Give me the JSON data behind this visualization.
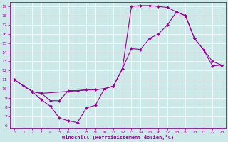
{
  "bg_color": "#cce8e8",
  "line_color": "#990099",
  "xlim": [
    -0.5,
    23.5
  ],
  "ylim": [
    5.7,
    19.5
  ],
  "xticks": [
    0,
    1,
    2,
    3,
    4,
    5,
    6,
    7,
    8,
    9,
    10,
    11,
    12,
    13,
    14,
    15,
    16,
    17,
    18,
    19,
    20,
    21,
    22,
    23
  ],
  "yticks": [
    6,
    7,
    8,
    9,
    10,
    11,
    12,
    13,
    14,
    15,
    16,
    17,
    18,
    19
  ],
  "xlabel": "Windchill (Refroidissement éolien,°C)",
  "line1_x": [
    0,
    1,
    2,
    3,
    4,
    5,
    6,
    7,
    8,
    9,
    10,
    11,
    12,
    13,
    14,
    15,
    16,
    17,
    18,
    19,
    20,
    21,
    22,
    23
  ],
  "line1_y": [
    11,
    10.3,
    9.7,
    9.5,
    8.7,
    8.7,
    9.8,
    9.8,
    9.9,
    9.9,
    10.0,
    10.3,
    12.2,
    14.4,
    14.3,
    15.5,
    16.0,
    17.0,
    18.4,
    18.0,
    15.5,
    14.3,
    12.5,
    12.6
  ],
  "line2_x": [
    0,
    2,
    3,
    10,
    11,
    12,
    13,
    14,
    15,
    16,
    17,
    18,
    19,
    20,
    21,
    22,
    23
  ],
  "line2_y": [
    11,
    9.7,
    9.5,
    10.0,
    10.3,
    12.2,
    19.0,
    19.1,
    19.1,
    19.0,
    18.9,
    18.4,
    18.0,
    15.5,
    14.3,
    13.0,
    12.6
  ],
  "line3_x": [
    2,
    3,
    4,
    5,
    6,
    7,
    8,
    9,
    10
  ],
  "line3_y": [
    9.7,
    8.8,
    8.1,
    6.8,
    6.5,
    6.3,
    7.9,
    8.2,
    10.0
  ]
}
